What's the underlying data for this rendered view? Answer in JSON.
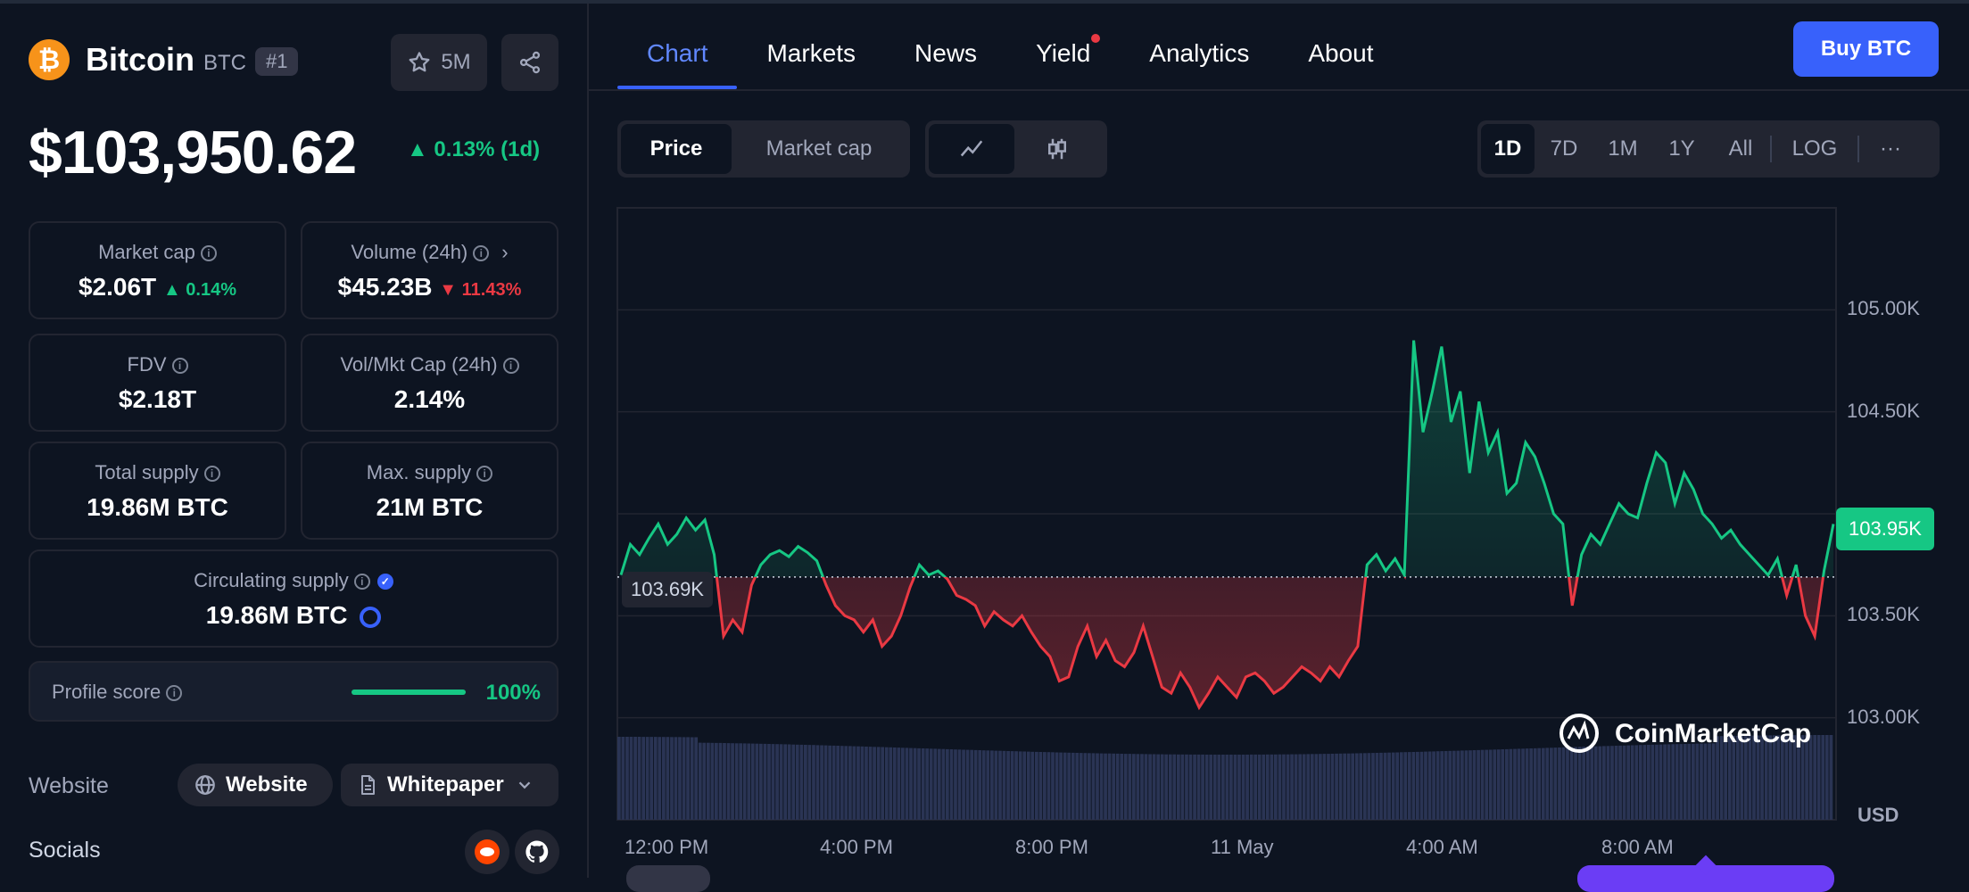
{
  "coin": {
    "name": "Bitcoin",
    "symbol": "BTC",
    "rank": "#1",
    "logo_glyph": "₿",
    "watchlist_count": "5M"
  },
  "price": {
    "value": "$103,950.62",
    "change": "0.13% (1d)"
  },
  "stats": {
    "market_cap": {
      "label": "Market cap",
      "value": "$2.06T",
      "change": "0.14%"
    },
    "volume": {
      "label": "Volume (24h)",
      "value": "$45.23B",
      "change": "11.43%"
    },
    "fdv": {
      "label": "FDV",
      "value": "$2.18T"
    },
    "vol_mkt": {
      "label": "Vol/Mkt Cap (24h)",
      "value": "2.14%"
    },
    "total_supply": {
      "label": "Total supply",
      "value": "19.86M BTC"
    },
    "max_supply": {
      "label": "Max. supply",
      "value": "21M BTC"
    },
    "circ_supply": {
      "label": "Circulating supply",
      "value": "19.86M BTC"
    }
  },
  "profile": {
    "label": "Profile score",
    "value": "100%",
    "progress": 1.0
  },
  "links": {
    "website_label": "Website",
    "website_btn": "Website",
    "whitepaper_btn": "Whitepaper",
    "socials_label": "Socials"
  },
  "tabs": [
    "Chart",
    "Markets",
    "News",
    "Yield",
    "Analytics",
    "About"
  ],
  "buy_label": "Buy BTC",
  "chart_controls": {
    "price": "Price",
    "market_cap": "Market cap",
    "ranges": [
      "1D",
      "7D",
      "1M",
      "1Y",
      "All",
      "LOG"
    ],
    "more": "···"
  },
  "chart_data": {
    "type": "line",
    "title": "",
    "currency": "USD",
    "y_ticks": [
      "105.00K",
      "104.50K",
      "103.50K",
      "103.00K"
    ],
    "ylim": [
      102.5,
      105.5
    ],
    "x_ticks": [
      "12:00 PM",
      "4:00 PM",
      "8:00 PM",
      "11 May",
      "4:00 AM",
      "8:00 AM"
    ],
    "baseline": 103.69,
    "baseline_label": "103.69K",
    "current_label": "103.95K",
    "watermark": "CoinMarketCap",
    "series": [
      {
        "values": [
          103.7,
          103.85,
          103.8,
          103.88,
          103.95,
          103.85,
          103.9,
          103.98,
          103.92,
          103.97,
          103.8,
          103.4,
          103.48,
          103.42,
          103.65,
          103.75,
          103.8,
          103.82,
          103.79,
          103.84,
          103.81,
          103.77,
          103.65,
          103.55,
          103.5,
          103.48,
          103.42,
          103.48,
          103.35,
          103.4,
          103.5,
          103.64,
          103.75,
          103.7,
          103.72,
          103.68,
          103.6,
          103.58,
          103.55,
          103.45,
          103.52,
          103.48,
          103.45,
          103.5,
          103.42,
          103.35,
          103.3,
          103.18,
          103.2,
          103.35,
          103.45,
          103.3,
          103.38,
          103.28,
          103.25,
          103.32,
          103.45,
          103.3,
          103.15,
          103.12,
          103.22,
          103.15,
          103.05,
          103.12,
          103.2,
          103.15,
          103.1,
          103.2,
          103.22,
          103.18,
          103.12,
          103.15,
          103.2,
          103.25,
          103.22,
          103.18,
          103.25,
          103.2,
          103.28,
          103.35,
          103.75,
          103.8,
          103.72,
          103.78,
          103.7,
          104.85,
          104.4,
          104.6,
          104.82,
          104.45,
          104.6,
          104.2,
          104.55,
          104.3,
          104.4,
          104.1,
          104.15,
          104.35,
          104.28,
          104.15,
          104.0,
          103.95,
          103.55,
          103.8,
          103.9,
          103.85,
          103.95,
          104.05,
          104.0,
          103.98,
          104.15,
          104.3,
          104.25,
          104.05,
          104.2,
          104.12,
          104.0,
          103.95,
          103.88,
          103.92,
          103.85,
          103.8,
          103.75,
          103.7,
          103.78,
          103.6,
          103.75,
          103.5,
          103.4,
          103.72,
          103.95
        ]
      }
    ]
  },
  "colors": {
    "up": "#16c784",
    "down": "#ea3943",
    "accent": "#3861fb",
    "volume": "#2a3454"
  }
}
